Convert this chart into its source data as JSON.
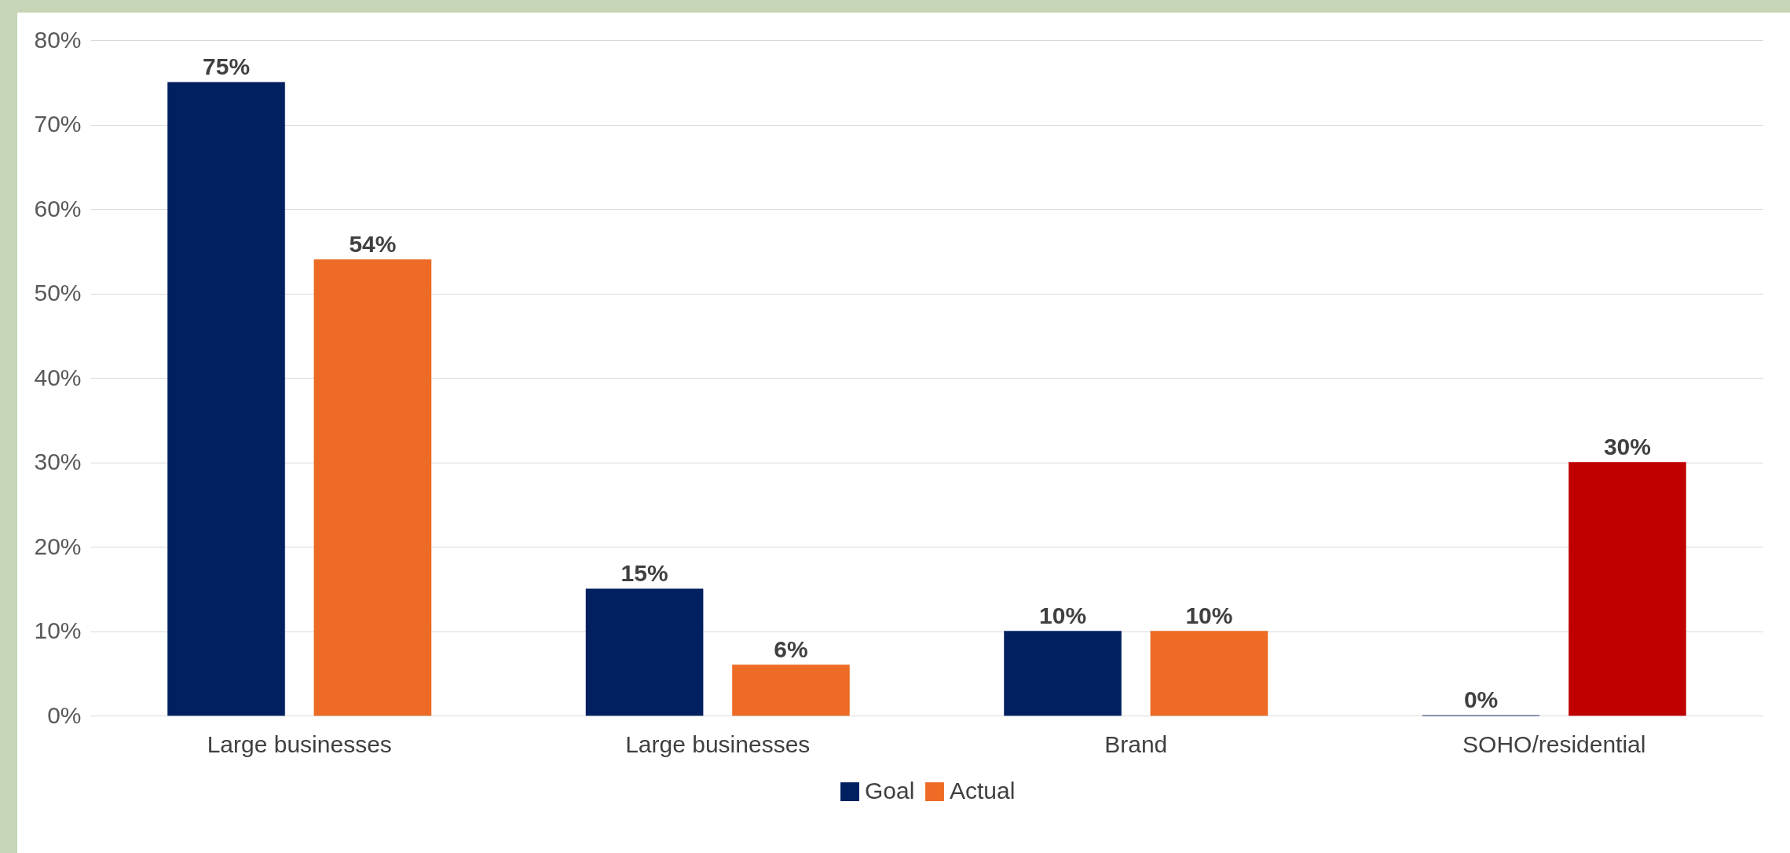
{
  "chart_data": {
    "type": "bar",
    "categories": [
      "Large businesses",
      "Large businesses",
      "Brand",
      "SOHO/residential"
    ],
    "series": [
      {
        "name": "Goal",
        "color": "#002060",
        "values": [
          75,
          15,
          10,
          0
        ],
        "value_labels": [
          "75%",
          "15%",
          "10%",
          "0%"
        ]
      },
      {
        "name": "Actual",
        "color": "#ed6b24",
        "colors": [
          "#ed6b24",
          "#ed6b24",
          "#ed6b24",
          "#c00000"
        ],
        "values": [
          54,
          6,
          10,
          30
        ],
        "value_labels": [
          "54%",
          "6%",
          "10%",
          "30%"
        ]
      }
    ],
    "ylim": [
      0,
      80
    ],
    "yticks": [
      {
        "value": 0,
        "label": "0%"
      },
      {
        "value": 10,
        "label": "10%"
      },
      {
        "value": 20,
        "label": "20%"
      },
      {
        "value": 30,
        "label": "30%"
      },
      {
        "value": 40,
        "label": "40%"
      },
      {
        "value": 50,
        "label": "50%"
      },
      {
        "value": 60,
        "label": "60%"
      },
      {
        "value": 70,
        "label": "70%"
      },
      {
        "value": 80,
        "label": "80%"
      }
    ],
    "grid": "y",
    "legend": "bottom"
  }
}
